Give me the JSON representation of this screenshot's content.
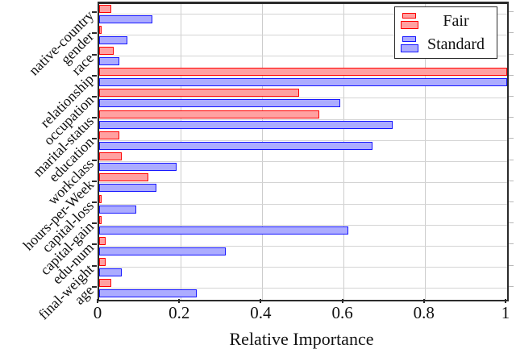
{
  "figure": {
    "xlabel": "Relative Importance",
    "legend": {
      "items": [
        {
          "label": "Fair",
          "series": "fair"
        },
        {
          "label": "Standard",
          "series": "standard"
        }
      ]
    }
  },
  "colors": {
    "fair_fill": "#ffa1a1",
    "fair_border": "#ff0000",
    "standard_fill": "#acacff",
    "standard_border": "#1515ff",
    "grid": "#cccccc",
    "spine": "#2b2b2b"
  },
  "chart_data": {
    "type": "bar",
    "orientation": "horizontal",
    "order": "top-to-bottom",
    "categories": [
      "native-country",
      "gender",
      "race",
      "relationship",
      "occupation",
      "marital-status",
      "education",
      "workclass",
      "hours-per-Week",
      "capital-loss",
      "capital-gain",
      "edu-num",
      "final-weight",
      "age"
    ],
    "series": [
      {
        "name": "Fair",
        "values": [
          0.03,
          0.005,
          0.035,
          1.0,
          0.49,
          0.54,
          0.05,
          0.055,
          0.12,
          0.005,
          0.005,
          0.015,
          0.015,
          0.03
        ]
      },
      {
        "name": "Standard",
        "values": [
          0.13,
          0.07,
          0.05,
          1.0,
          0.59,
          0.72,
          0.67,
          0.19,
          0.14,
          0.09,
          0.61,
          0.31,
          0.055,
          0.24
        ]
      }
    ],
    "xlabel": "Relative Importance",
    "xlim": [
      0,
      1
    ],
    "x_ticks": [
      0,
      0.2,
      0.4,
      0.6,
      0.8,
      1
    ],
    "x_tick_labels": [
      "0",
      "0.2",
      "0.4",
      "0.6",
      "0.8",
      "1"
    ],
    "grid": true,
    "legend_position": "upper right"
  }
}
